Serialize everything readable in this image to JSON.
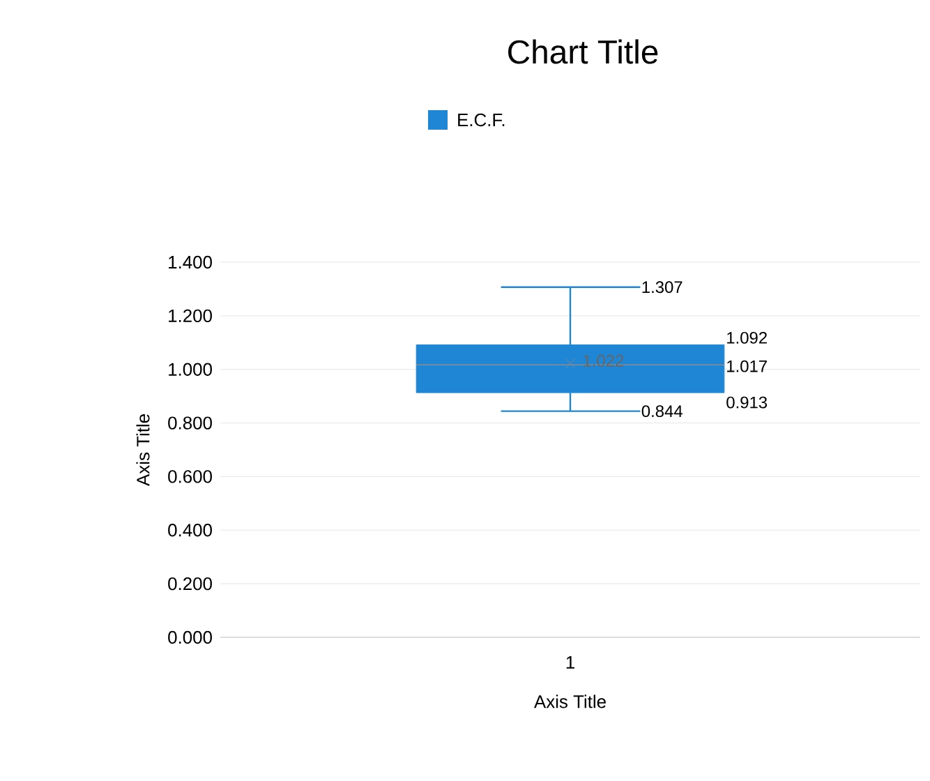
{
  "chart_data": {
    "type": "box",
    "title": "Chart Title",
    "xlabel": "Axis Title",
    "ylabel": "Axis Title",
    "categories": [
      "1"
    ],
    "series": [
      {
        "name": "E.C.F.",
        "color": "#1f86d6",
        "boxes": [
          {
            "low": 0.844,
            "q1": 0.913,
            "median": 1.017,
            "q3": 1.092,
            "high": 1.307,
            "mean": 1.022
          }
        ]
      }
    ],
    "ylim": [
      0,
      1.4
    ],
    "yticks": [
      {
        "value": 0,
        "label": "0.000"
      },
      {
        "value": 0.2,
        "label": "0.200"
      },
      {
        "value": 0.4,
        "label": "0.400"
      },
      {
        "value": 0.6,
        "label": "0.600"
      },
      {
        "value": 0.8,
        "label": "0.800"
      },
      {
        "value": 1.0,
        "label": "1.000"
      },
      {
        "value": 1.2,
        "label": "1.200"
      },
      {
        "value": 1.4,
        "label": "1.400"
      }
    ],
    "annotations": [
      "1.307",
      "1.092",
      "1.017",
      "0.913",
      {
        "text": "1.022",
        "x": "1",
        "y": 1.022
      },
      "0.844"
    ],
    "grid": "y",
    "legend": "top",
    "marker": "cross"
  }
}
